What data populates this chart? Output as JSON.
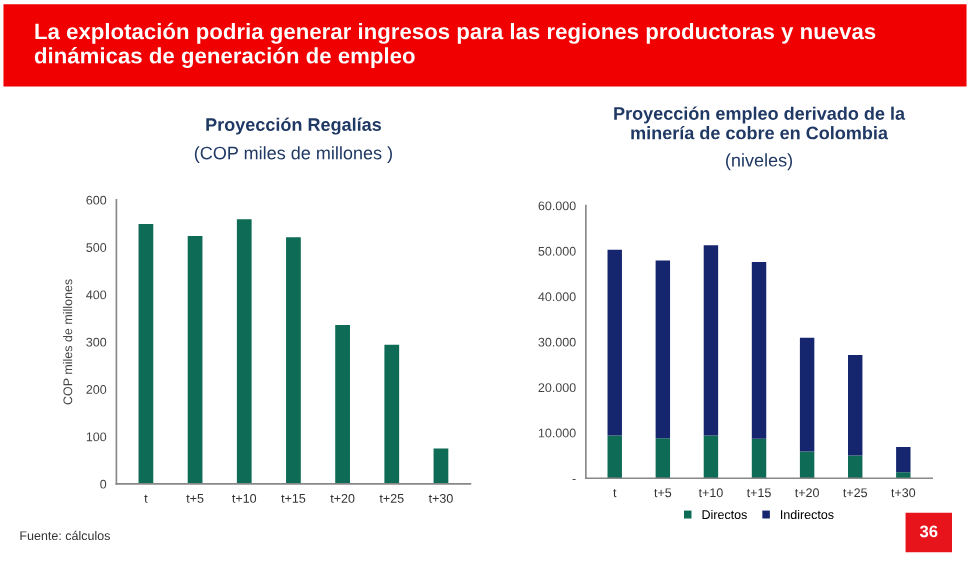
{
  "chart_data": [
    {
      "type": "bar",
      "title": "Proyección Regalías",
      "subtitle": "(COP miles de millones )",
      "ylabel": "COP miles de millones",
      "categories": [
        "t",
        "t+5",
        "t+10",
        "t+15",
        "t+20",
        "t+25",
        "t+30"
      ],
      "series": [
        {
          "color": "#0e6b55",
          "values": [
            549,
            524,
            559,
            521,
            336,
            294,
            75
          ]
        }
      ],
      "ylim": [
        0,
        600
      ],
      "yticks": [
        0,
        100,
        200,
        300,
        400,
        500,
        600
      ],
      "grid": false,
      "legend": false,
      "annotations": [
        "La explotación podria generar ingresos para las regiones productoras y nuevas dinámicas de generación de empleo",
        "Fuente: cálculos"
      ]
    },
    {
      "type": "bar",
      "title": "Proyección empleo derivado de la\nminería de cobre en Colombia",
      "subtitle": "(niveles)",
      "stacked": true,
      "categories": [
        "t",
        "t+5",
        "t+10",
        "t+15",
        "t+20",
        "t+25",
        "t+30"
      ],
      "series": [
        {
          "name": "Directos",
          "color": "#0e6b55",
          "values": [
            9400,
            8800,
            9400,
            8700,
            5900,
            5000,
            1300
          ]
        },
        {
          "name": "Indirectos",
          "color": "#16266e",
          "values": [
            40900,
            39100,
            41900,
            38900,
            25000,
            22100,
            5600
          ]
        }
      ],
      "ylim": [
        0,
        60000
      ],
      "yticks": [
        {
          "value": 0,
          "label": "-"
        },
        {
          "value": 10000,
          "label": "10.000"
        },
        {
          "value": 20000,
          "label": "20.000"
        },
        {
          "value": 30000,
          "label": "30.000"
        },
        {
          "value": 40000,
          "label": "40.000"
        },
        {
          "value": 50000,
          "label": "50.000"
        },
        {
          "value": 60000,
          "label": "60.000"
        }
      ],
      "grid": false,
      "legend": "bottom",
      "annotations": [
        "36"
      ]
    }
  ]
}
